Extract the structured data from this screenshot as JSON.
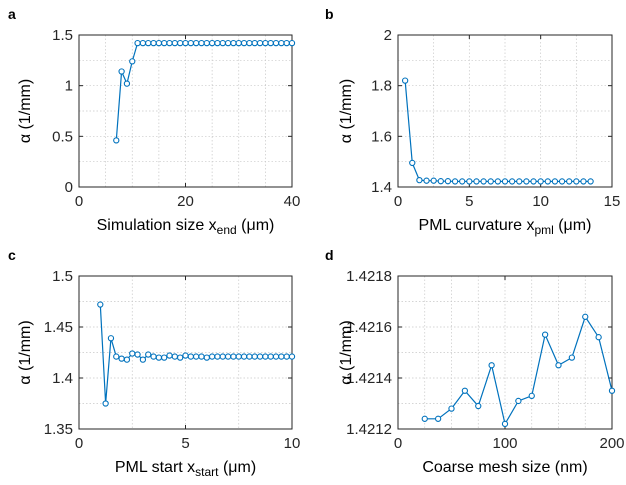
{
  "series_color": "#0072BD",
  "chart_data": [
    {
      "panel": "a",
      "type": "line",
      "xlabel_main": "Simulation size x",
      "xlabel_sub": "end",
      "xlabel_suffix": " (μm)",
      "ylabel": "α (1/mm)",
      "xlim": [
        0,
        40
      ],
      "ylim": [
        0,
        1.5
      ],
      "xticks": [
        0,
        20,
        40
      ],
      "yticks": [
        0,
        0.5,
        1,
        1.5
      ],
      "xtick_labels": [
        "0",
        "20",
        "40"
      ],
      "ytick_labels": [
        "0",
        "0.5",
        "1",
        "1.5"
      ],
      "xminor": [
        5,
        10,
        15,
        25,
        30,
        35
      ],
      "yminor": [
        0.25,
        0.75,
        1.25
      ],
      "grid": true,
      "x": [
        7,
        8,
        9,
        10,
        11,
        12,
        13,
        14,
        15,
        16,
        17,
        18,
        19,
        20,
        21,
        22,
        23,
        24,
        25,
        26,
        27,
        28,
        29,
        30,
        31,
        32,
        33,
        34,
        35,
        36,
        37,
        38,
        39,
        40
      ],
      "y": [
        0.46,
        1.14,
        1.02,
        1.24,
        1.42,
        1.42,
        1.42,
        1.42,
        1.42,
        1.42,
        1.42,
        1.42,
        1.42,
        1.42,
        1.42,
        1.42,
        1.42,
        1.42,
        1.42,
        1.42,
        1.42,
        1.42,
        1.42,
        1.42,
        1.42,
        1.42,
        1.42,
        1.42,
        1.42,
        1.42,
        1.42,
        1.42,
        1.42,
        1.42
      ]
    },
    {
      "panel": "b",
      "type": "line",
      "xlabel_main": "PML curvature x",
      "xlabel_sub": "pml",
      "xlabel_suffix": " (μm)",
      "ylabel": "α (1/mm)",
      "xlim": [
        0,
        15
      ],
      "ylim": [
        1.4,
        2
      ],
      "xticks": [
        0,
        5,
        10,
        15
      ],
      "yticks": [
        1.4,
        1.6,
        1.8,
        2
      ],
      "xtick_labels": [
        "0",
        "5",
        "10",
        "15"
      ],
      "ytick_labels": [
        "1.4",
        "1.6",
        "1.8",
        "2"
      ],
      "xminor": [
        2.5,
        7.5,
        12.5
      ],
      "yminor": [
        1.5,
        1.7,
        1.9
      ],
      "grid": true,
      "x": [
        0.5,
        1,
        1.5,
        2,
        2.5,
        3,
        3.5,
        4,
        4.5,
        5,
        5.5,
        6,
        6.5,
        7,
        7.5,
        8,
        8.5,
        9,
        9.5,
        10,
        10.5,
        11,
        11.5,
        12,
        12.5,
        13,
        13.5
      ],
      "y": [
        1.82,
        1.495,
        1.427,
        1.425,
        1.425,
        1.423,
        1.423,
        1.422,
        1.422,
        1.422,
        1.422,
        1.422,
        1.422,
        1.422,
        1.422,
        1.422,
        1.422,
        1.422,
        1.422,
        1.422,
        1.422,
        1.422,
        1.422,
        1.422,
        1.422,
        1.422,
        1.422
      ]
    },
    {
      "panel": "c",
      "type": "line",
      "xlabel_main": "PML start x",
      "xlabel_sub": "start",
      "xlabel_suffix": " (μm)",
      "ylabel": "α (1/mm)",
      "xlim": [
        0,
        10
      ],
      "ylim": [
        1.35,
        1.5
      ],
      "xticks": [
        0,
        5,
        10
      ],
      "yticks": [
        1.35,
        1.4,
        1.45,
        1.5
      ],
      "xtick_labels": [
        "0",
        "5",
        "10"
      ],
      "ytick_labels": [
        "1.35",
        "1.4",
        "1.45",
        "1.5"
      ],
      "xminor": [
        2.5,
        7.5
      ],
      "yminor": [
        1.375,
        1.425,
        1.475
      ],
      "grid": true,
      "x": [
        1,
        1.25,
        1.5,
        1.75,
        2,
        2.25,
        2.5,
        2.75,
        3,
        3.25,
        3.5,
        3.75,
        4,
        4.25,
        4.5,
        4.75,
        5,
        5.25,
        5.5,
        5.75,
        6,
        6.25,
        6.5,
        6.75,
        7,
        7.25,
        7.5,
        7.75,
        8,
        8.25,
        8.5,
        8.75,
        9,
        9.25,
        9.5,
        9.75,
        10
      ],
      "y": [
        1.472,
        1.375,
        1.439,
        1.421,
        1.419,
        1.418,
        1.424,
        1.423,
        1.418,
        1.423,
        1.421,
        1.42,
        1.42,
        1.422,
        1.421,
        1.42,
        1.422,
        1.421,
        1.421,
        1.421,
        1.42,
        1.421,
        1.421,
        1.421,
        1.421,
        1.421,
        1.421,
        1.421,
        1.421,
        1.421,
        1.421,
        1.421,
        1.421,
        1.421,
        1.421,
        1.421,
        1.421
      ]
    },
    {
      "panel": "d",
      "type": "line",
      "xlabel_main": "Coarse mesh size (nm)",
      "xlabel_sub": "",
      "xlabel_suffix": "",
      "ylabel": "α (1/mm)",
      "xlim": [
        0,
        200
      ],
      "ylim": [
        1.4212,
        1.4218
      ],
      "xticks": [
        0,
        100,
        200
      ],
      "yticks": [
        1.4212,
        1.4214,
        1.4216,
        1.4218
      ],
      "xtick_labels": [
        "0",
        "100",
        "200"
      ],
      "ytick_labels": [
        "1.4212",
        "1.4214",
        "1.4216",
        "1.4218"
      ],
      "xminor": [
        25,
        50,
        75,
        125,
        150,
        175
      ],
      "yminor": [
        1.4213,
        1.4215,
        1.4217
      ],
      "grid": true,
      "x": [
        25,
        37.5,
        50,
        62.5,
        75,
        87.5,
        100,
        112.5,
        125,
        137.5,
        150,
        162.5,
        175,
        187.5,
        200
      ],
      "y": [
        1.42124,
        1.42124,
        1.42128,
        1.42135,
        1.42129,
        1.42145,
        1.42122,
        1.42131,
        1.42133,
        1.42157,
        1.42145,
        1.42148,
        1.42164,
        1.42156,
        1.42135
      ]
    }
  ]
}
